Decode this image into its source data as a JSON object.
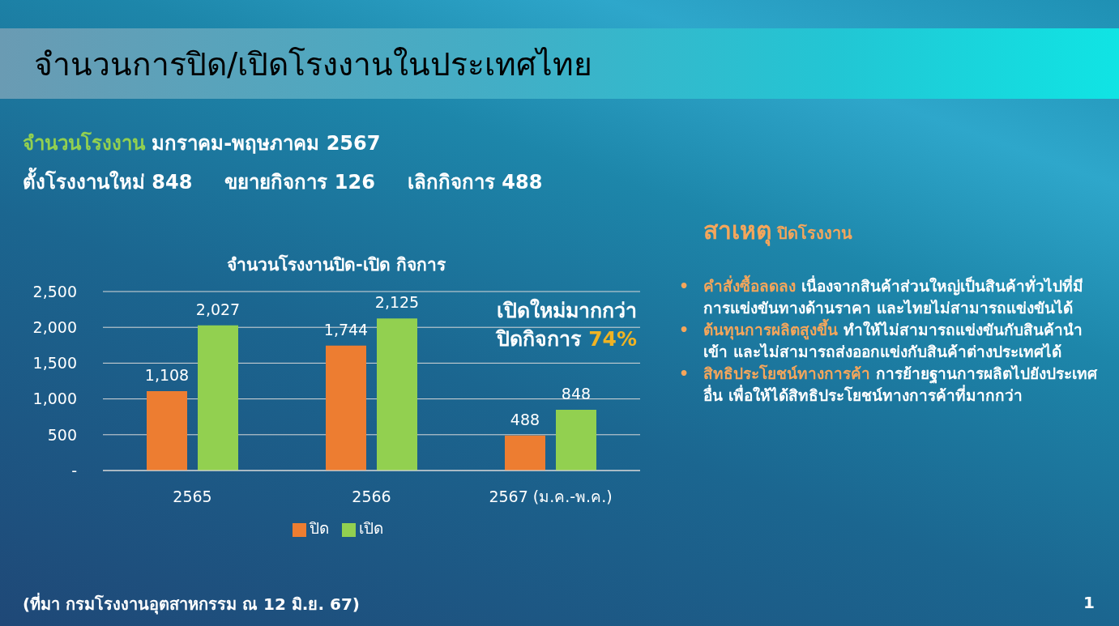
{
  "chart_data": {
    "type": "bar",
    "title": "จำนวนการปิด/เปิดโรงงานในประเทศไทย",
    "subtitle": "จำนวนโรงงานปิด-เปิด กิจการ",
    "categories": [
      "2565",
      "2566",
      "2567 (ม.ค.-พ.ค.)"
    ],
    "series": [
      {
        "name": "ปิด",
        "color": "#ed7d31",
        "values": [
          1108,
          1744,
          488
        ],
        "value_labels": [
          "1,108",
          "1,744",
          "488"
        ]
      },
      {
        "name": "เปิด",
        "color": "#92d050",
        "values": [
          2027,
          2125,
          848
        ],
        "value_labels": [
          "2,027",
          "2,125",
          "848"
        ]
      }
    ],
    "ylim": [
      0,
      2500
    ],
    "yticks": [
      {
        "value": 0,
        "label": "-"
      },
      500,
      {
        "value": 1000,
        "label": "1,000"
      },
      {
        "value": 1500,
        "label": "1,500"
      },
      {
        "value": 2000,
        "label": "2,000"
      },
      {
        "value": 2500,
        "label": "2,500"
      }
    ],
    "grid": "y",
    "legend": "bottom",
    "annotations": [
      "จำนวนโรงงาน มกราคม-พฤษภาคม 2567",
      "ตั้งโรงงานใหม่ 848",
      "ขยายกิจการ 126",
      "เลิกกิจการ 488",
      "เปิดใหม่มากกว่า ปิดกิจการ 74%",
      "สาเหตุ ปิดโรงงาน",
      "• คำสั่งซื้อลดลง เนื่องจากสินค้าส่วนใหญ่เป็นสินค้าทั่วไปที่มีการแข่งขันทางด้านราคา และไทยไม่สามารถแข่งขันได้",
      "• ต้นทุนการผลิตสูงขึ้น ทำให้ไม่สามารถแข่งขันกับสินค้านำเข้า และไม่สามารถส่งออกแข่งกับสินค้าต่างประเทศได้",
      "• สิทธิประโยชน์ทางการค้า การย้ายฐานการผลิตไปยังประเทศอื่น เพื่อให้ได้สิทธิประโยชน์ทางการค้าที่มากกว่า",
      "(ที่มา กรมโรงงานอุตสาหกรรม ณ 12 มิ.ย. 67)",
      "1"
    ]
  }
}
